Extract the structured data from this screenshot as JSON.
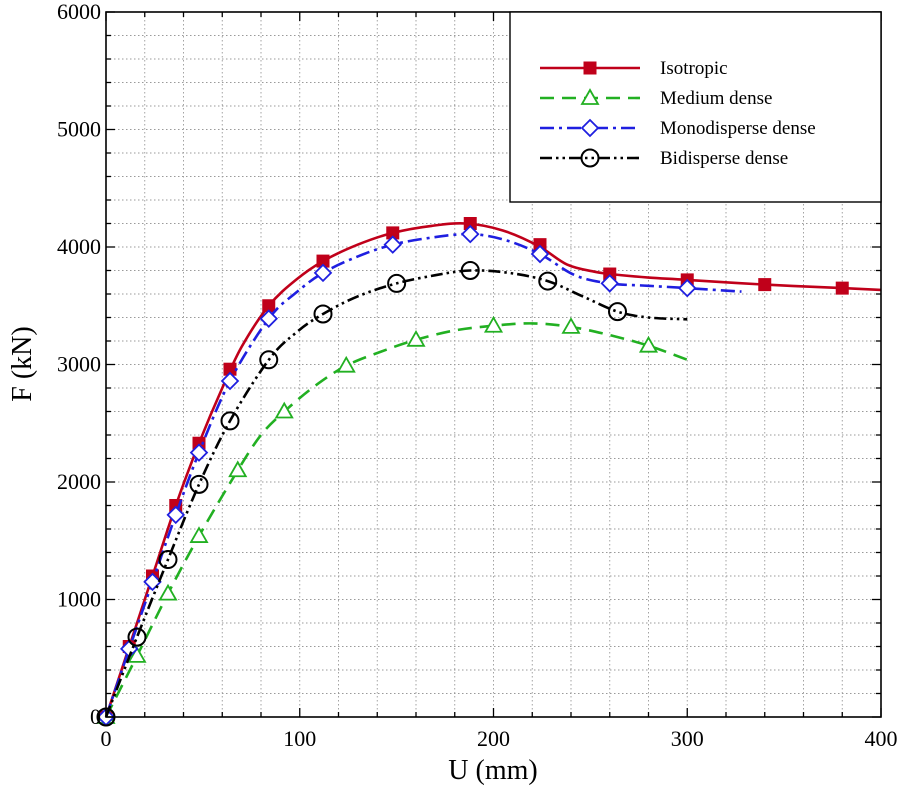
{
  "chart_data": {
    "type": "line",
    "title": "",
    "xlabel": "U (mm)",
    "ylabel": "F (kN)",
    "xlim": [
      0,
      400
    ],
    "ylim": [
      0,
      6000
    ],
    "x_major_ticks": [
      0,
      100,
      200,
      300,
      400
    ],
    "y_major_ticks": [
      0,
      1000,
      2000,
      3000,
      4000,
      5000,
      6000
    ],
    "x_tick_labels": [
      "0",
      "100",
      "200",
      "300",
      "400"
    ],
    "y_tick_labels": [
      "0",
      "1000",
      "2000",
      "3000",
      "4000",
      "5000",
      "6000"
    ],
    "grid": true,
    "legend_position": "top-right",
    "series": [
      {
        "name": "Isotropic",
        "color": "#c0001a",
        "marker": "filled-square",
        "line_style": "solid",
        "curve": [
          [
            0,
            0
          ],
          [
            12,
            600
          ],
          [
            24,
            1200
          ],
          [
            36,
            1800
          ],
          [
            48,
            2330
          ],
          [
            60,
            2800
          ],
          [
            70,
            3150
          ],
          [
            84,
            3500
          ],
          [
            98,
            3720
          ],
          [
            112,
            3880
          ],
          [
            130,
            4020
          ],
          [
            148,
            4120
          ],
          [
            168,
            4180
          ],
          [
            186,
            4200
          ],
          [
            205,
            4140
          ],
          [
            223,
            4010
          ],
          [
            238,
            3850
          ],
          [
            252,
            3790
          ],
          [
            260,
            3770
          ],
          [
            280,
            3740
          ],
          [
            300,
            3720
          ],
          [
            340,
            3680
          ],
          [
            380,
            3650
          ],
          [
            400,
            3635
          ]
        ],
        "markers": [
          [
            0,
            0
          ],
          [
            12,
            600
          ],
          [
            24,
            1200
          ],
          [
            36,
            1800
          ],
          [
            48,
            2330
          ],
          [
            64,
            2960
          ],
          [
            84,
            3500
          ],
          [
            112,
            3880
          ],
          [
            148,
            4120
          ],
          [
            188,
            4200
          ],
          [
            224,
            4020
          ],
          [
            260,
            3770
          ],
          [
            300,
            3720
          ],
          [
            340,
            3680
          ],
          [
            380,
            3650
          ]
        ]
      },
      {
        "name": "Medium dense",
        "color": "#22b022",
        "marker": "open-triangle",
        "line_style": "dashed",
        "curve": [
          [
            0,
            0
          ],
          [
            16,
            520
          ],
          [
            32,
            1050
          ],
          [
            48,
            1540
          ],
          [
            68,
            2100
          ],
          [
            80,
            2400
          ],
          [
            92,
            2600
          ],
          [
            108,
            2820
          ],
          [
            124,
            2990
          ],
          [
            142,
            3110
          ],
          [
            160,
            3210
          ],
          [
            180,
            3290
          ],
          [
            200,
            3330
          ],
          [
            220,
            3350
          ],
          [
            240,
            3320
          ],
          [
            260,
            3250
          ],
          [
            280,
            3160
          ],
          [
            300,
            3040
          ]
        ],
        "markers": [
          [
            0,
            0
          ],
          [
            16,
            520
          ],
          [
            32,
            1050
          ],
          [
            48,
            1540
          ],
          [
            68,
            2100
          ],
          [
            92,
            2600
          ],
          [
            124,
            2990
          ],
          [
            160,
            3210
          ],
          [
            200,
            3330
          ],
          [
            240,
            3320
          ],
          [
            280,
            3160
          ]
        ]
      },
      {
        "name": "Monodisperse dense",
        "color": "#1f1fe0",
        "marker": "open-diamond",
        "line_style": "dash-dot",
        "curve": [
          [
            0,
            0
          ],
          [
            12,
            580
          ],
          [
            24,
            1150
          ],
          [
            36,
            1720
          ],
          [
            48,
            2250
          ],
          [
            64,
            2860
          ],
          [
            84,
            3390
          ],
          [
            98,
            3610
          ],
          [
            112,
            3780
          ],
          [
            130,
            3920
          ],
          [
            148,
            4020
          ],
          [
            168,
            4080
          ],
          [
            188,
            4110
          ],
          [
            206,
            4060
          ],
          [
            224,
            3940
          ],
          [
            242,
            3760
          ],
          [
            260,
            3690
          ],
          [
            280,
            3670
          ],
          [
            300,
            3650
          ],
          [
            328,
            3620
          ]
        ],
        "markers": [
          [
            0,
            0
          ],
          [
            12,
            580
          ],
          [
            24,
            1150
          ],
          [
            36,
            1720
          ],
          [
            48,
            2250
          ],
          [
            64,
            2860
          ],
          [
            84,
            3390
          ],
          [
            112,
            3780
          ],
          [
            148,
            4020
          ],
          [
            188,
            4110
          ],
          [
            224,
            3940
          ],
          [
            260,
            3690
          ],
          [
            300,
            3650
          ]
        ]
      },
      {
        "name": "Bidisperse dense",
        "color": "#000000",
        "marker": "open-circle",
        "line_style": "dash-dot-dot",
        "curve": [
          [
            0,
            0
          ],
          [
            16,
            680
          ],
          [
            32,
            1340
          ],
          [
            48,
            1980
          ],
          [
            64,
            2520
          ],
          [
            84,
            3040
          ],
          [
            98,
            3270
          ],
          [
            112,
            3430
          ],
          [
            130,
            3580
          ],
          [
            150,
            3690
          ],
          [
            170,
            3760
          ],
          [
            188,
            3800
          ],
          [
            208,
            3780
          ],
          [
            228,
            3710
          ],
          [
            246,
            3580
          ],
          [
            264,
            3450
          ],
          [
            280,
            3400
          ],
          [
            300,
            3385
          ]
        ],
        "markers": [
          [
            0,
            0
          ],
          [
            16,
            680
          ],
          [
            32,
            1340
          ],
          [
            48,
            1980
          ],
          [
            64,
            2520
          ],
          [
            84,
            3040
          ],
          [
            112,
            3430
          ],
          [
            150,
            3690
          ],
          [
            188,
            3800
          ],
          [
            228,
            3710
          ],
          [
            264,
            3450
          ]
        ]
      }
    ]
  }
}
